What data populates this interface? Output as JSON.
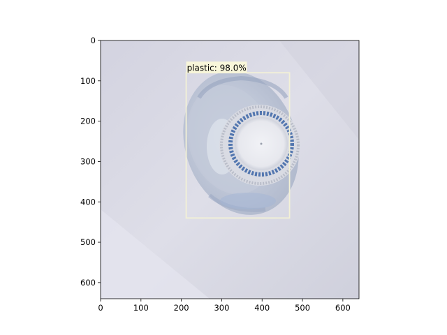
{
  "image": {
    "subject": "plastic-bottle-cap",
    "background_color": "#d9d9e4"
  },
  "detection": {
    "label": "plastic: 98.0%",
    "box": {
      "x1": 212,
      "y1": 80,
      "x2": 468,
      "y2": 440
    },
    "box_color": "#f3f1d6",
    "label_bg": "#f8f6da"
  },
  "axes": {
    "xlim": [
      0,
      640
    ],
    "ylim": [
      640,
      0
    ],
    "x_ticks": [
      0,
      100,
      200,
      300,
      400,
      500,
      600
    ],
    "y_ticks": [
      0,
      100,
      200,
      300,
      400,
      500,
      600
    ],
    "x_tick_labels": [
      "0",
      "100",
      "200",
      "300",
      "400",
      "500",
      "600"
    ],
    "y_tick_labels": [
      "0",
      "100",
      "200",
      "300",
      "400",
      "500",
      "600"
    ]
  }
}
